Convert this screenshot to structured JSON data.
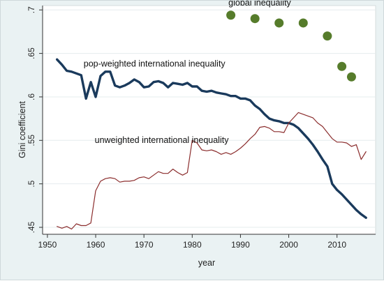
{
  "chart_data": {
    "type": "line",
    "title": "",
    "xlabel": "year",
    "ylabel": "Gini coefficient",
    "xlim": [
      1949,
      2018
    ],
    "ylim": [
      0.442,
      0.705
    ],
    "xticks": [
      1950,
      1960,
      1970,
      1980,
      1990,
      2000,
      2010
    ],
    "xtick_labels": [
      "1950",
      "1960",
      "1970",
      "1980",
      "1990",
      "2000",
      "2010"
    ],
    "yticks": [
      0.45,
      0.5,
      0.55,
      0.6,
      0.65,
      0.7
    ],
    "ytick_labels": [
      ".45",
      ".5",
      ".55",
      ".6",
      ".65",
      ".7"
    ],
    "grid": "horizontal",
    "legend": "none",
    "series": [
      {
        "name": "global inequality",
        "style": "markers",
        "color": "#567c2b",
        "x": [
          1988,
          1993,
          1998,
          2003,
          2008,
          2011,
          2013
        ],
        "y": [
          0.694,
          0.69,
          0.685,
          0.685,
          0.67,
          0.635,
          0.623
        ]
      },
      {
        "name": "pop-weighted international inequality",
        "style": "thick-line",
        "color": "#1a3a5c",
        "x": [
          1952,
          1953,
          1954,
          1955,
          1956,
          1957,
          1958,
          1959,
          1960,
          1961,
          1962,
          1963,
          1964,
          1965,
          1966,
          1967,
          1968,
          1969,
          1970,
          1971,
          1972,
          1973,
          1974,
          1975,
          1976,
          1977,
          1978,
          1979,
          1980,
          1981,
          1982,
          1983,
          1984,
          1985,
          1986,
          1987,
          1988,
          1989,
          1990,
          1991,
          1992,
          1993,
          1994,
          1995,
          1996,
          1997,
          1998,
          1999,
          2000,
          2001,
          2002,
          2003,
          2004,
          2005,
          2006,
          2007,
          2008,
          2009,
          2010,
          2011,
          2012,
          2013,
          2014,
          2015,
          2016
        ],
        "y": [
          0.643,
          0.637,
          0.63,
          0.629,
          0.627,
          0.625,
          0.598,
          0.617,
          0.6,
          0.624,
          0.629,
          0.629,
          0.613,
          0.611,
          0.613,
          0.616,
          0.62,
          0.617,
          0.611,
          0.612,
          0.617,
          0.618,
          0.616,
          0.611,
          0.616,
          0.615,
          0.614,
          0.616,
          0.612,
          0.612,
          0.607,
          0.606,
          0.607,
          0.605,
          0.604,
          0.603,
          0.601,
          0.601,
          0.598,
          0.598,
          0.596,
          0.59,
          0.586,
          0.58,
          0.575,
          0.573,
          0.572,
          0.57,
          0.57,
          0.568,
          0.564,
          0.558,
          0.552,
          0.545,
          0.537,
          0.528,
          0.52,
          0.5,
          0.493,
          0.488,
          0.482,
          0.476,
          0.47,
          0.465,
          0.461
        ]
      },
      {
        "name": "unweighted international inequality",
        "style": "thin-line",
        "color": "#8b2d2d",
        "x": [
          1952,
          1953,
          1954,
          1955,
          1956,
          1957,
          1958,
          1959,
          1960,
          1961,
          1962,
          1963,
          1964,
          1965,
          1966,
          1967,
          1968,
          1969,
          1970,
          1971,
          1972,
          1973,
          1974,
          1975,
          1976,
          1977,
          1978,
          1979,
          1980,
          1981,
          1982,
          1983,
          1984,
          1985,
          1986,
          1987,
          1988,
          1989,
          1990,
          1991,
          1992,
          1993,
          1994,
          1995,
          1996,
          1997,
          1998,
          1999,
          2000,
          2001,
          2002,
          2003,
          2004,
          2005,
          2006,
          2007,
          2008,
          2009,
          2010,
          2011,
          2012,
          2013,
          2014,
          2015,
          2016
        ],
        "y": [
          0.451,
          0.449,
          0.451,
          0.448,
          0.454,
          0.452,
          0.452,
          0.455,
          0.492,
          0.503,
          0.506,
          0.507,
          0.506,
          0.502,
          0.503,
          0.503,
          0.504,
          0.507,
          0.508,
          0.506,
          0.51,
          0.514,
          0.512,
          0.512,
          0.517,
          0.513,
          0.51,
          0.513,
          0.55,
          0.547,
          0.539,
          0.538,
          0.539,
          0.537,
          0.534,
          0.536,
          0.534,
          0.537,
          0.541,
          0.546,
          0.552,
          0.557,
          0.565,
          0.566,
          0.564,
          0.56,
          0.56,
          0.559,
          0.57,
          0.576,
          0.582,
          0.58,
          0.578,
          0.576,
          0.57,
          0.566,
          0.559,
          0.552,
          0.548,
          0.548,
          0.547,
          0.543,
          0.545,
          0.528,
          0.537
        ]
      }
    ],
    "annotations": [
      {
        "text": "global inequality",
        "x": 1987.5,
        "y": 0.705
      },
      {
        "text": "pop-weighted international inequality",
        "x": 1957.5,
        "y": 0.635
      },
      {
        "text": "unweighted international inequality",
        "x": 1959.8,
        "y": 0.547
      }
    ]
  }
}
